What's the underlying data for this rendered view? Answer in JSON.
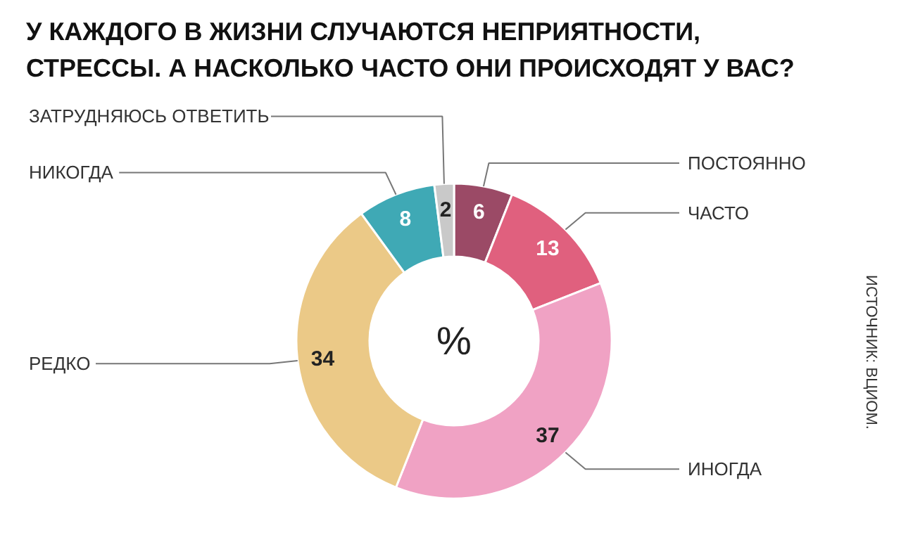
{
  "chart_data": {
    "type": "donut",
    "title": "У КАЖДОГО В ЖИЗНИ СЛУЧАЮТСЯ НЕПРИЯТНОСТИ, СТРЕССЫ. А НАСКОЛЬКО ЧАСТО ОНИ ПРОИСХОДЯТ У ВАС?",
    "categories": [
      "ПОСТОЯННО",
      "ЧАСТО",
      "ИНОГДА",
      "РЕДКО",
      "НИКОГДА",
      "ЗАТРУДНЯЮСЬ ОТВЕТИТЬ"
    ],
    "values": [
      6,
      13,
      37,
      34,
      8,
      2
    ],
    "colors": [
      "#9b4a66",
      "#e0607e",
      "#f0a2c4",
      "#ebc987",
      "#3fa9b5",
      "#c9c9c9"
    ],
    "data_labels": true,
    "annotations": [
      "%",
      "ИСТОЧНИК: ВЦИОМ."
    ]
  }
}
